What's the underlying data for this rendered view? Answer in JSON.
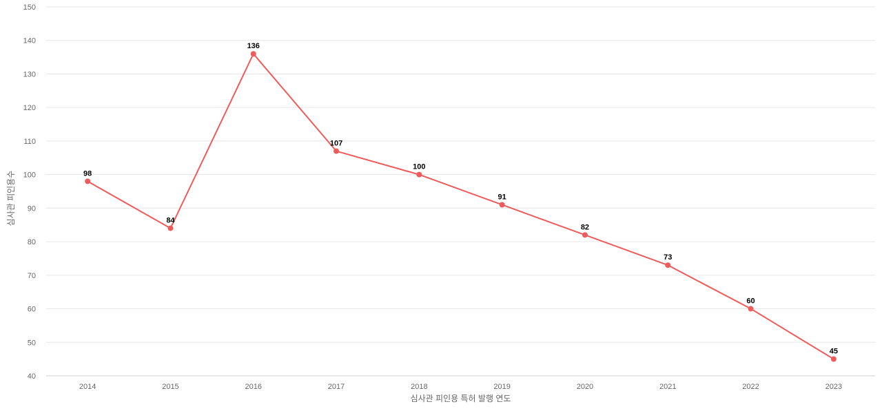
{
  "chart_data": {
    "type": "line",
    "xlabel": "심사관 피인용 특허 발행 연도",
    "ylabel": "심사관 피인용수",
    "ylim": [
      40,
      150
    ],
    "ytick_step": 10,
    "grid": true,
    "categories": [
      "2014",
      "2015",
      "2016",
      "2017",
      "2018",
      "2019",
      "2020",
      "2021",
      "2022",
      "2023"
    ],
    "series": [
      {
        "values": [
          98,
          84,
          136,
          107,
          100,
          91,
          82,
          73,
          60,
          45
        ],
        "color": "#ef5b5b"
      }
    ],
    "data_labels": true
  }
}
